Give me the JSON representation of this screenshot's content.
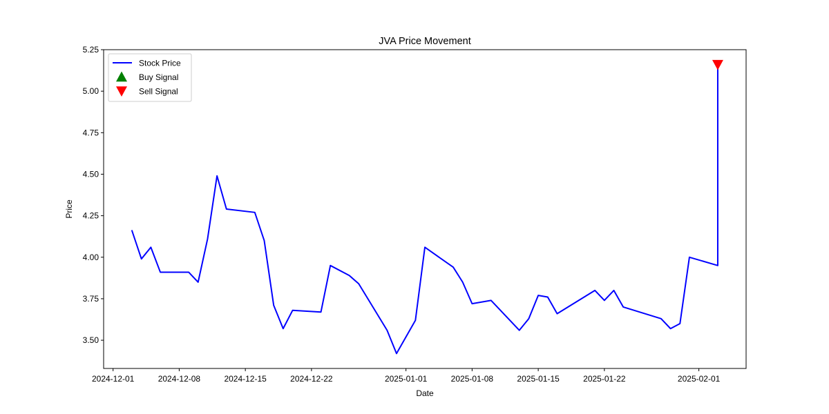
{
  "chart_data": {
    "type": "line",
    "title": "JVA Price Movement",
    "xlabel": "Date",
    "ylabel": "Price",
    "ylim": [
      3.33,
      5.25
    ],
    "xlim": [
      "2024-11-30",
      "2025-02-06"
    ],
    "grid": false,
    "legend_position": "top-left",
    "x_ticks": [
      "2024-12-01",
      "2024-12-08",
      "2024-12-15",
      "2024-12-22",
      "2025-01-01",
      "2025-01-08",
      "2025-01-15",
      "2025-01-22",
      "2025-02-01"
    ],
    "y_ticks": [
      "3.50",
      "3.75",
      "4.00",
      "4.25",
      "4.50",
      "4.75",
      "5.00",
      "5.25"
    ],
    "series": [
      {
        "name": "Stock Price",
        "kind": "line",
        "color": "#0000ff",
        "x": [
          "2024-12-03",
          "2024-12-04",
          "2024-12-05",
          "2024-12-06",
          "2024-12-09",
          "2024-12-10",
          "2024-12-11",
          "2024-12-12",
          "2024-12-13",
          "2024-12-16",
          "2024-12-17",
          "2024-12-18",
          "2024-12-19",
          "2024-12-20",
          "2024-12-23",
          "2024-12-24",
          "2024-12-26",
          "2024-12-27",
          "2024-12-30",
          "2024-12-31",
          "2025-01-02",
          "2025-01-03",
          "2025-01-06",
          "2025-01-07",
          "2025-01-08",
          "2025-01-10",
          "2025-01-13",
          "2025-01-14",
          "2025-01-15",
          "2025-01-16",
          "2025-01-17",
          "2025-01-21",
          "2025-01-22",
          "2025-01-23",
          "2025-01-24",
          "2025-01-28",
          "2025-01-29",
          "2025-01-30",
          "2025-01-31",
          "2025-02-03"
        ],
        "values": [
          4.16,
          3.99,
          4.06,
          3.91,
          3.91,
          3.85,
          4.11,
          4.49,
          4.29,
          4.27,
          4.1,
          3.71,
          3.57,
          3.68,
          3.67,
          3.95,
          3.89,
          3.84,
          3.56,
          3.42,
          3.62,
          4.06,
          3.94,
          3.85,
          3.72,
          3.74,
          3.56,
          3.63,
          3.77,
          3.76,
          3.66,
          3.8,
          3.74,
          3.8,
          3.7,
          3.63,
          3.57,
          3.6,
          4.0,
          3.95
        ]
      },
      {
        "name": "Buy Signal",
        "kind": "marker-up",
        "color": "#008000",
        "x": [],
        "values": []
      },
      {
        "name": "Sell Signal",
        "kind": "marker-down",
        "color": "#ff0000",
        "x": [
          "2025-02-03"
        ],
        "values": [
          5.16
        ]
      }
    ]
  }
}
